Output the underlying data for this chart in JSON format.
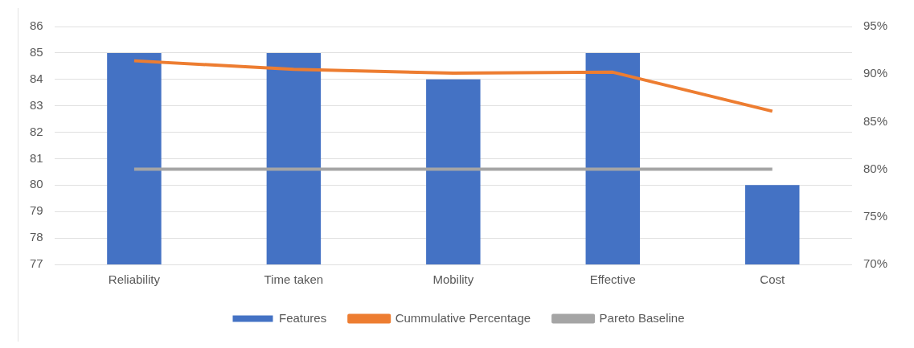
{
  "chart_data": {
    "type": "bar",
    "categories": [
      "Reliability",
      "Time taken",
      "Mobility",
      "Effective",
      "Cost"
    ],
    "series": [
      {
        "name": "Features",
        "color": "#4472c4",
        "values": [
          85,
          85,
          84,
          85,
          80
        ]
      },
      {
        "name": "Cummulative Percentage",
        "type": "line",
        "axis": "y2",
        "color": "#ed7d31",
        "values": [
          91.4,
          90.5,
          90.1,
          90.2,
          86.1
        ]
      },
      {
        "name": "Pareto Baseline",
        "type": "line",
        "axis": "y2",
        "color": "#a5a5a5",
        "values": [
          80,
          80,
          80,
          80,
          80
        ]
      }
    ],
    "ylim": [
      77,
      86
    ],
    "yticks": [
      77,
      78,
      79,
      80,
      81,
      82,
      83,
      84,
      85,
      86
    ],
    "y2lim": [
      70,
      95
    ],
    "y2ticks": [
      {
        "value": 70,
        "label": "70%"
      },
      {
        "value": 75,
        "label": "75%"
      },
      {
        "value": 80,
        "label": "80%"
      },
      {
        "value": 85,
        "label": "85%"
      },
      {
        "value": 90,
        "label": "90%"
      },
      {
        "value": 95,
        "label": "95%"
      }
    ],
    "grid": "y",
    "legend": "bottom",
    "marker": "none",
    "line_style": "solid"
  }
}
